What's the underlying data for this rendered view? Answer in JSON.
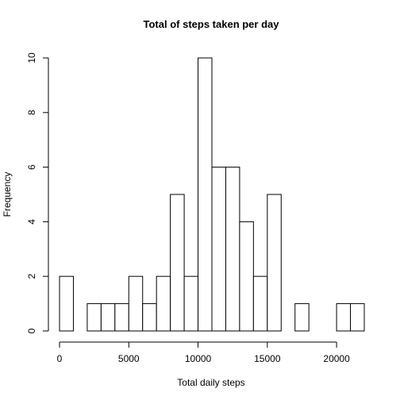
{
  "chart_data": {
    "type": "bar",
    "title": "Total of steps taken per day",
    "xlabel": "Total daily steps",
    "ylabel": "Frequency",
    "bin_width": 1000,
    "bins_start": [
      0,
      1000,
      2000,
      3000,
      4000,
      5000,
      6000,
      7000,
      8000,
      9000,
      10000,
      11000,
      12000,
      13000,
      14000,
      15000,
      16000,
      17000,
      18000,
      19000,
      20000,
      21000
    ],
    "values": [
      2,
      0,
      1,
      1,
      1,
      2,
      1,
      2,
      5,
      2,
      10,
      6,
      6,
      4,
      2,
      5,
      0,
      1,
      0,
      0,
      1,
      1
    ],
    "xlim": [
      0,
      22000
    ],
    "ylim": [
      0,
      10
    ],
    "x_ticks": [
      0,
      5000,
      10000,
      15000,
      20000
    ],
    "x_tick_labels": [
      "0",
      "5000",
      "10000",
      "15000",
      "20000"
    ],
    "y_ticks": [
      0,
      2,
      4,
      6,
      8,
      10
    ],
    "y_tick_labels": [
      "0",
      "2",
      "4",
      "6",
      "8",
      "10"
    ],
    "grid": false,
    "bar_fill": "#ffffff",
    "bar_stroke": "#000000"
  }
}
